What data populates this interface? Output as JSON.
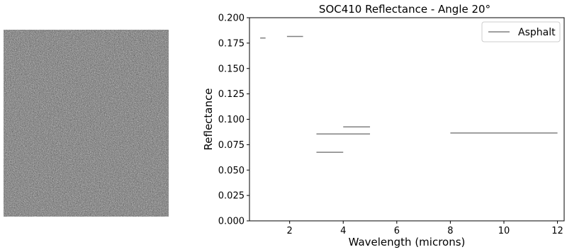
{
  "photo": {
    "subject": "asphalt-texture-photo"
  },
  "colors": {
    "series": "#808080",
    "axis": "#000000",
    "legend_border": "#cccccc"
  },
  "chart_data": {
    "type": "line",
    "title": "SOC410 Reflectance - Angle 20°",
    "xlabel": "Wavelength (microns)",
    "ylabel": "Reflectance",
    "xlim": [
      0.5,
      12.25
    ],
    "ylim": [
      0.0,
      0.2
    ],
    "xticks": [
      2,
      4,
      6,
      8,
      10,
      12
    ],
    "xtick_labels": [
      "2",
      "4",
      "6",
      "8",
      "10",
      "12"
    ],
    "yticks": [
      0.0,
      0.025,
      0.05,
      0.075,
      0.1,
      0.125,
      0.15,
      0.175,
      0.2
    ],
    "ytick_labels": [
      "0.000",
      "0.025",
      "0.050",
      "0.075",
      "0.100",
      "0.125",
      "0.150",
      "0.175",
      "0.200"
    ],
    "grid": false,
    "legend_position": "top-right",
    "series": [
      {
        "name": "Asphalt",
        "color": "#808080",
        "segments": [
          {
            "x": [
              0.9,
              1.1
            ],
            "y": [
              0.18,
              0.18
            ]
          },
          {
            "x": [
              1.9,
              2.5
            ],
            "y": [
              0.1815,
              0.1815
            ]
          },
          {
            "x": [
              3.0,
              4.0
            ],
            "y": [
              0.0675,
              0.0675
            ]
          },
          {
            "x": [
              3.0,
              5.0
            ],
            "y": [
              0.0855,
              0.0855
            ]
          },
          {
            "x": [
              4.0,
              5.0
            ],
            "y": [
              0.0925,
              0.0925
            ]
          },
          {
            "x": [
              8.0,
              12.0
            ],
            "y": [
              0.0865,
              0.0865
            ]
          }
        ]
      }
    ]
  }
}
